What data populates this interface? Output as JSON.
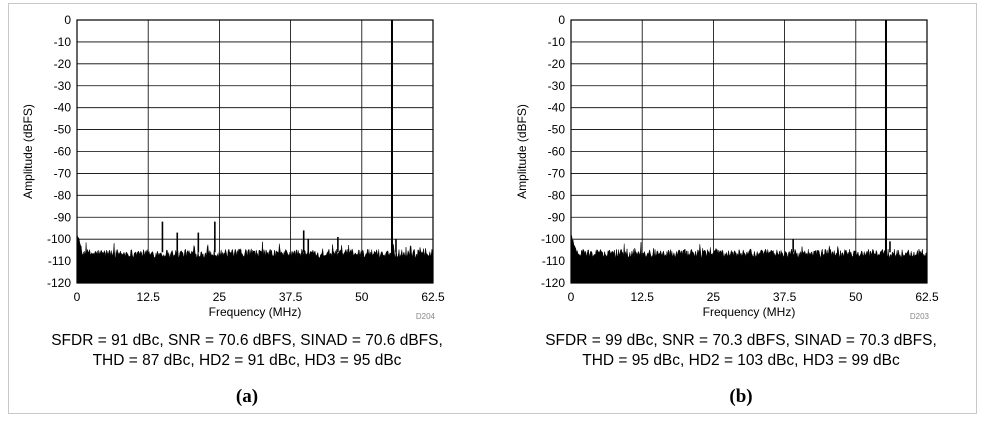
{
  "chart_data": [
    {
      "type": "line",
      "panel_label": "(a)",
      "xlabel": "Frequency (MHz)",
      "ylabel": "Amplitude (dBFS)",
      "xlim": [
        0,
        62.5
      ],
      "ylim": [
        -120,
        0
      ],
      "x_ticks": [
        "0",
        "12.5",
        "25",
        "37.5",
        "50",
        "62.5"
      ],
      "y_ticks": [
        "0",
        "-10",
        "-20",
        "-30",
        "-40",
        "-50",
        "-60",
        "-70",
        "-80",
        "-90",
        "-100",
        "-110",
        "-120"
      ],
      "grid": true,
      "figure_code": "D204",
      "series": [
        {
          "noise_floor": -105,
          "fundamental": {
            "x": 55.3,
            "y": 0
          },
          "spurs": [
            {
              "x": 15.0,
              "y": -92
            },
            {
              "x": 17.6,
              "y": -97
            },
            {
              "x": 21.3,
              "y": -97
            },
            {
              "x": 24.2,
              "y": -92
            },
            {
              "x": 39.8,
              "y": -96
            },
            {
              "x": 40.6,
              "y": -100
            },
            {
              "x": 45.8,
              "y": -99
            },
            {
              "x": 56.0,
              "y": -100
            }
          ]
        }
      ],
      "metrics": [
        "SFDR = 91 dBc, SNR = 70.6 dBFS, SINAD = 70.6 dBFS,",
        "THD = 87 dBc, HD2 = 91 dBc, HD3 = 95 dBc"
      ]
    },
    {
      "type": "line",
      "panel_label": "(b)",
      "xlabel": "Frequency (MHz)",
      "ylabel": "Amplitude (dBFS)",
      "xlim": [
        0,
        62.5
      ],
      "ylim": [
        -120,
        0
      ],
      "x_ticks": [
        "0",
        "12.5",
        "25",
        "37.5",
        "50",
        "62.5"
      ],
      "y_ticks": [
        "0",
        "-10",
        "-20",
        "-30",
        "-40",
        "-50",
        "-60",
        "-70",
        "-80",
        "-90",
        "-100",
        "-110",
        "-120"
      ],
      "grid": true,
      "figure_code": "D203",
      "series": [
        {
          "noise_floor": -105,
          "fundamental": {
            "x": 55.3,
            "y": 0
          },
          "spurs": [
            {
              "x": 39.0,
              "y": -100
            },
            {
              "x": 56.0,
              "y": -101
            }
          ]
        }
      ],
      "metrics": [
        "SFDR = 99 dBc, SNR = 70.3 dBFS, SINAD = 70.3 dBFS,",
        "THD = 95 dBc, HD2 = 103 dBc, HD3 = 99 dBc"
      ]
    }
  ]
}
